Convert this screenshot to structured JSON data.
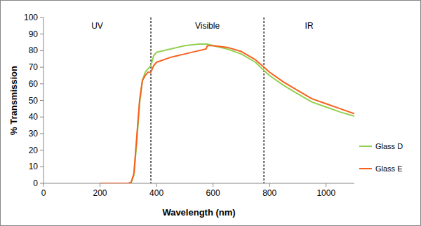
{
  "chart_data": {
    "type": "line",
    "x_label": "Wavelength (nm)",
    "y_label": "% Transmission",
    "x": [
      200,
      300,
      310,
      320,
      330,
      340,
      350,
      360,
      370,
      380,
      390,
      400,
      450,
      500,
      550,
      575,
      580,
      600,
      650,
      700,
      750,
      780,
      800,
      850,
      900,
      950,
      1000,
      1050,
      1100
    ],
    "series": [
      {
        "name": "Glass D",
        "color": "#92d050",
        "values": [
          0,
          0,
          0.5,
          5,
          25,
          48,
          62,
          67,
          69,
          71,
          77,
          79,
          81,
          83,
          84,
          84,
          84,
          83,
          81,
          78,
          73,
          68,
          65,
          59,
          54,
          49,
          46,
          43,
          40.5
        ]
      },
      {
        "name": "Glass E",
        "color": "#f8601e",
        "values": [
          0,
          0,
          0.5,
          6,
          28,
          50,
          62,
          65,
          67,
          67,
          71,
          73,
          76,
          78,
          80,
          81,
          83,
          83,
          82,
          79.5,
          74.5,
          70,
          67,
          61,
          56,
          51,
          48,
          45,
          42
        ]
      }
    ],
    "bands": [
      {
        "label": "UV",
        "from": 0,
        "to": 380
      },
      {
        "label": "Visible",
        "from": 380,
        "to": 780
      },
      {
        "label": "IR",
        "from": 780,
        "to": 1100
      }
    ],
    "xlim": [
      0,
      1100
    ],
    "xticks": [
      0,
      200,
      400,
      600,
      800,
      1000
    ],
    "ylim": [
      0,
      100
    ],
    "yticks": [
      0,
      10,
      20,
      30,
      40,
      50,
      60,
      70,
      80,
      90,
      100
    ],
    "grid": false,
    "legend": "right"
  }
}
